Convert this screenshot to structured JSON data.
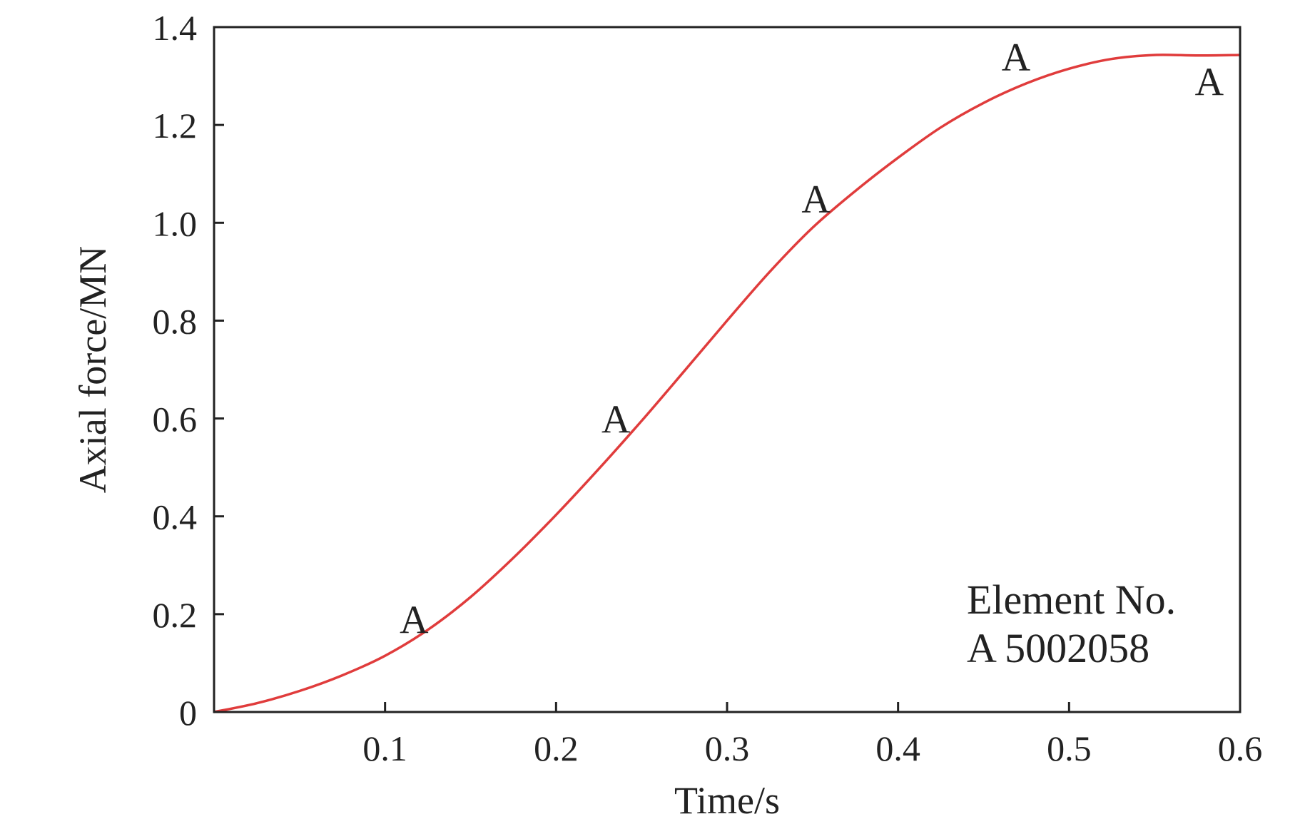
{
  "chart_data": {
    "type": "line",
    "title": "",
    "xlabel": "Time/s",
    "ylabel": "Axial force/MN",
    "xlim": [
      0,
      0.6
    ],
    "ylim": [
      0,
      1.4
    ],
    "xticks": [
      0.1,
      0.2,
      0.3,
      0.4,
      0.5,
      0.6
    ],
    "xtick_labels": [
      "0.1",
      "0.2",
      "0.3",
      "0.4",
      "0.5",
      "0.6"
    ],
    "yticks": [
      0,
      0.2,
      0.4,
      0.6,
      0.8,
      1.0,
      1.2,
      1.4
    ],
    "ytick_labels": [
      "0",
      "0.2",
      "0.4",
      "0.6",
      "0.8",
      "1.0",
      "1.2",
      "1.4"
    ],
    "grid": false,
    "annotation": {
      "line1": "Element No.",
      "line2": "A 5002058"
    },
    "series": [
      {
        "color": "#e03c3c",
        "marker_label": "A",
        "markers": [
          {
            "x": 0.117,
            "y": 0.19
          },
          {
            "x": 0.235,
            "y": 0.6
          },
          {
            "x": 0.352,
            "y": 1.05
          },
          {
            "x": 0.469,
            "y": 1.34
          },
          {
            "x": 0.582,
            "y": 1.29
          }
        ],
        "x": [
          0,
          0.025,
          0.05,
          0.075,
          0.1,
          0.125,
          0.15,
          0.175,
          0.2,
          0.225,
          0.25,
          0.275,
          0.3,
          0.325,
          0.35,
          0.375,
          0.4,
          0.425,
          0.45,
          0.475,
          0.5,
          0.525,
          0.55,
          0.575,
          0.6
        ],
        "y": [
          0,
          0.018,
          0.043,
          0.075,
          0.115,
          0.168,
          0.235,
          0.315,
          0.403,
          0.497,
          0.595,
          0.697,
          0.8,
          0.9,
          0.99,
          1.065,
          1.133,
          1.195,
          1.245,
          1.285,
          1.315,
          1.335,
          1.343,
          1.342,
          1.343
        ]
      }
    ]
  }
}
